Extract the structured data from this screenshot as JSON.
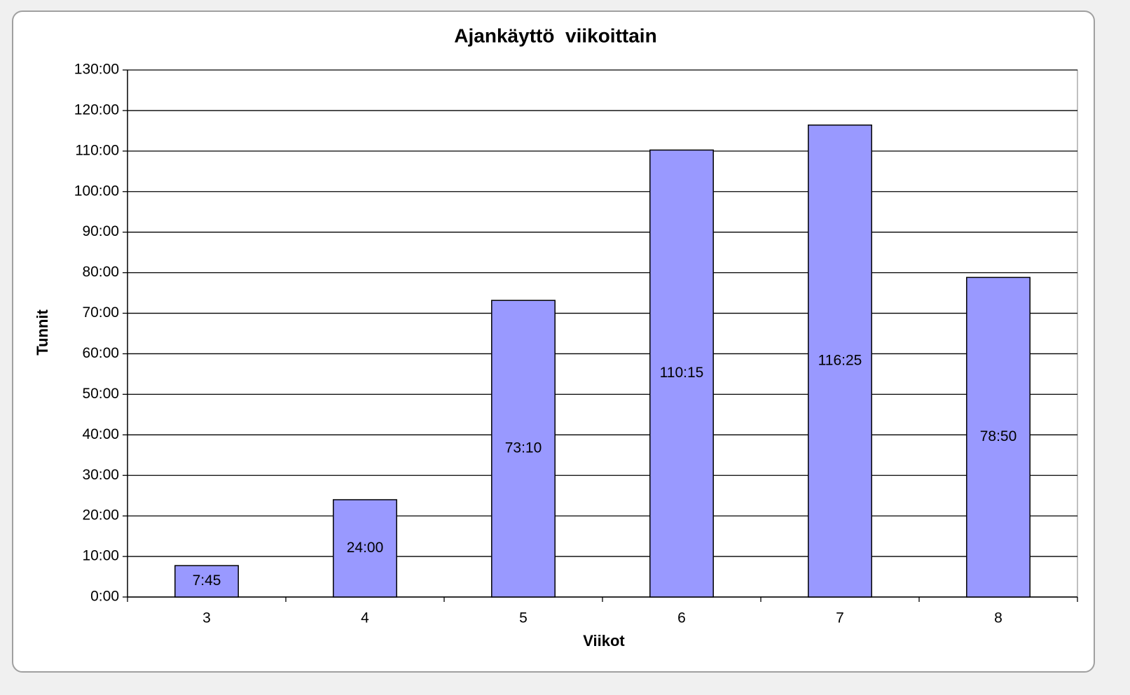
{
  "chart_data": {
    "type": "bar",
    "title": "Ajankäyttö  viikoittain",
    "x_label": "Viikot",
    "y_label": "Tunnit",
    "categories": [
      "3",
      "4",
      "5",
      "6",
      "7",
      "8"
    ],
    "values": [
      7.75,
      24,
      73.16667,
      110.25,
      116.41667,
      78.83333
    ],
    "value_labels": [
      "7:45",
      "24:00",
      "73:10",
      "110:15",
      "116:25",
      "78:50"
    ],
    "color": "#9999ff",
    "ylim": [
      0,
      130
    ],
    "yticks": [
      {
        "value": 0,
        "label": "0:00"
      },
      {
        "value": 10,
        "label": "10:00"
      },
      {
        "value": 20,
        "label": "20:00"
      },
      {
        "value": 30,
        "label": "30:00"
      },
      {
        "value": 40,
        "label": "40:00"
      },
      {
        "value": 50,
        "label": "50:00"
      },
      {
        "value": 60,
        "label": "60:00"
      },
      {
        "value": 70,
        "label": "70:00"
      },
      {
        "value": 80,
        "label": "80:00"
      },
      {
        "value": 90,
        "label": "90:00"
      },
      {
        "value": 100,
        "label": "100:00"
      },
      {
        "value": 110,
        "label": "110:00"
      },
      {
        "value": 120,
        "label": "120:00"
      },
      {
        "value": 130,
        "label": "130:00"
      }
    ],
    "grid": true
  }
}
